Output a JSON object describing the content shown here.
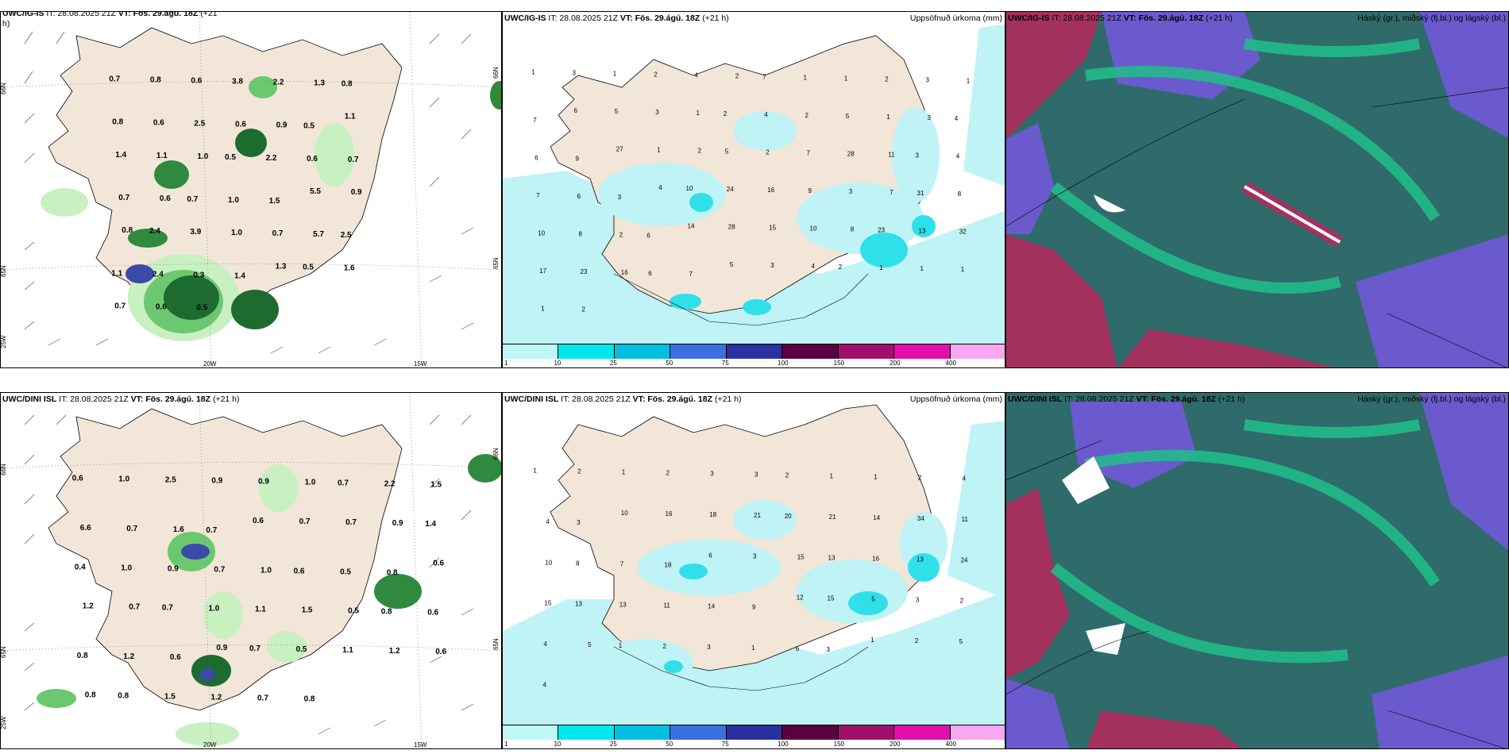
{
  "row_top": {
    "wind": {
      "title_model": "UWC/IG-IS",
      "title_rest": " IT: 28.08.2025 21Z ",
      "title_vt": "VT: Fös. 29.ágú. 18Z",
      "title_tail": " (+21",
      "title_wrap": "h)",
      "lat_labels": [
        "66N",
        "65N",
        "25W"
      ],
      "lon_labels": [
        "20W",
        "15W"
      ],
      "right_labels": [
        "66N",
        "65N"
      ],
      "values": [
        "0.7",
        "0.8",
        "0.6",
        "3.8",
        "2.2",
        "1.3",
        "0.8",
        "0.8",
        "0.6",
        "2.5",
        "0.6",
        "0.9",
        "0.5",
        "1.1",
        "1.4",
        "1.1",
        "1.0",
        "0.5",
        "2.2",
        "0.6",
        "0.7",
        "0.7",
        "0.6",
        "0.7",
        "1.0",
        "1.5",
        "5.5",
        "0.9",
        "0.8",
        "2.4",
        "3.9",
        "1.0",
        "0.7",
        "5.7",
        "2.5",
        "1.1",
        "2.4",
        "0.3",
        "1.4",
        "1.3",
        "0.5",
        "1.6",
        "0.7",
        "0.6",
        "0.5"
      ]
    },
    "precip": {
      "title_model": "UWC/IG-IS",
      "title_rest": " IT: 28.08.2025 21Z ",
      "title_vt": "VT: Fös. 29.ágú. 18Z",
      "title_tail": " (+21 h)",
      "right_title": "Uppsöfnuð úrkoma (mm)",
      "values": [
        "1",
        "3",
        "1",
        "2",
        "4",
        "2",
        "7",
        "1",
        "1",
        "2",
        "3",
        "1",
        "7",
        "6",
        "5",
        "3",
        "1",
        "2",
        "4",
        "2",
        "5",
        "1",
        "3",
        "4",
        "6",
        "9",
        "27",
        "1",
        "2",
        "5",
        "2",
        "7",
        "28",
        "11",
        "3",
        "4",
        "7",
        "6",
        "3",
        "4",
        "10",
        "24",
        "16",
        "9",
        "3",
        "7",
        "31",
        "8",
        "10",
        "8",
        "2",
        "6",
        "14",
        "28",
        "15",
        "10",
        "8",
        "23",
        "13",
        "32",
        "17",
        "23",
        "16",
        "6",
        "7",
        "5",
        "3",
        "4",
        "2",
        "1",
        "1",
        "1",
        "1",
        "2"
      ],
      "colorbar": [
        "1",
        "10",
        "25",
        "50",
        "75",
        "100",
        "150",
        "200",
        "400"
      ]
    },
    "cloud": {
      "title_model": "UWC/IG-IS",
      "title_rest": " IT: 28.08.2025 21Z ",
      "title_vt": "VT: Fös. 29.ágú. 18Z",
      "title_tail": " (+21 h)",
      "right_title": "Háský (gr.), miðský (fj.bl.) og lágský (bl.)"
    }
  },
  "row_bottom": {
    "wind": {
      "title_model": "UWC/DINI ISL",
      "title_rest": " IT: 28.08.2025 21Z ",
      "title_vt": "VT: Fös. 29.ágú. 18Z",
      "title_tail": " (+21 h)",
      "lat_labels": [
        "66N",
        "65N",
        "25W"
      ],
      "lon_labels": [
        "20W",
        "15W"
      ],
      "right_labels": [
        "66N",
        "65N"
      ],
      "values": [
        "0.6",
        "1.0",
        "2.5",
        "0.9",
        "0.9",
        "1.0",
        "0.7",
        "2.2",
        "1.5",
        "6.6",
        "0.7",
        "1.6",
        "0.7",
        "0.6",
        "0.7",
        "0.7",
        "0.9",
        "1.4",
        "0.4",
        "1.0",
        "0.9",
        "0.7",
        "1.0",
        "0.6",
        "0.5",
        "0.8",
        "0.6",
        "1.2",
        "0.7",
        "0.7",
        "1.0",
        "1.1",
        "1.5",
        "0.5",
        "0.8",
        "0.6",
        "0.8",
        "1.2",
        "0.6",
        "0.9",
        "0.7",
        "0.5",
        "1.1",
        "1.2",
        "0.6",
        "0.8",
        "0.8",
        "1.5",
        "1.2",
        "0.7",
        "0.8"
      ]
    },
    "precip": {
      "title_model": "UWC/DINI ISL",
      "title_rest": " IT: 28.08.2025 21Z ",
      "title_vt": "VT: Fös. 29.ágú. 18Z",
      "title_tail": " (+21 h)",
      "right_title": "Uppsöfnuð úrkoma (mm)",
      "values": [
        "1",
        "2",
        "1",
        "2",
        "3",
        "3",
        "2",
        "1",
        "1",
        "2",
        "4",
        "4",
        "3",
        "10",
        "16",
        "18",
        "21",
        "20",
        "21",
        "14",
        "34",
        "11",
        "10",
        "8",
        "7",
        "18",
        "6",
        "3",
        "15",
        "13",
        "16",
        "13",
        "24",
        "15",
        "13",
        "13",
        "11",
        "14",
        "9",
        "12",
        "15",
        "5",
        "3",
        "2",
        "4",
        "5",
        "1",
        "2",
        "3",
        "1",
        "6",
        "3",
        "1",
        "2",
        "5",
        "4"
      ],
      "colorbar": [
        "1",
        "10",
        "25",
        "50",
        "75",
        "100",
        "150",
        "200",
        "400"
      ]
    },
    "cloud": {
      "title_model": "UWC/DINI ISL",
      "title_rest": " IT: 28.08.2025 21Z ",
      "title_vt": "VT: Fös. 29.ágú. 18Z",
      "title_tail": " (+21 h)",
      "right_title": "Háský (gr.), miðský (fj.bl.) og lágský (bl.)"
    }
  },
  "colors": {
    "land": "#f2e6d9",
    "green_light": "#c9f0c0",
    "green_mid": "#6cc870",
    "green_dark": "#1d6b2e",
    "blue_precip": "#bff3f5",
    "cyan_precip": "#2fe0ea",
    "cloud_purple": "#6a5acd",
    "cloud_teal": "#2f6b6b",
    "cloud_green": "#20c08a",
    "cloud_red": "#a3315e",
    "colorbar": [
      "#bff7f7",
      "#00e8ee",
      "#00c0e0",
      "#3a70e0",
      "#2a30a0",
      "#5a0040",
      "#a0106a",
      "#e010a8",
      "#f7a8f0"
    ]
  }
}
